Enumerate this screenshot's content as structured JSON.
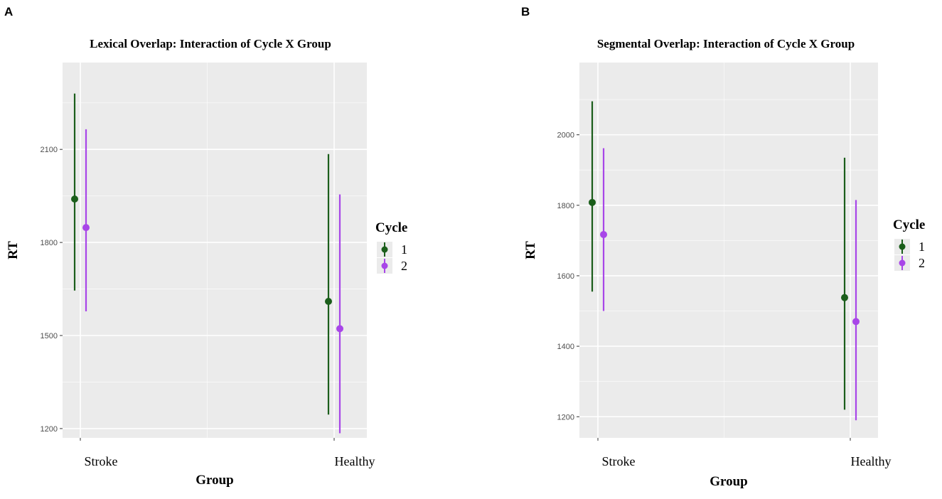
{
  "colors": {
    "cycle1": "#1b5e1b",
    "cycle2": "#a846e8",
    "panel_bg": "#ebebeb",
    "grid": "#ffffff"
  },
  "chart_data": [
    {
      "panel_label": "A",
      "type": "errorbar",
      "title": "Lexical Overlap: Interaction of Cycle X Group",
      "xlabel": "Group",
      "ylabel": "RT",
      "categories": [
        "Stroke",
        "Healthy"
      ],
      "ylim": [
        1170,
        2380
      ],
      "yticks": [
        1200,
        1500,
        1800,
        2100
      ],
      "legend": {
        "title": "Cycle",
        "position": "right",
        "entries": [
          "1",
          "2"
        ]
      },
      "series": [
        {
          "name": "1",
          "color_key": "cycle1",
          "means": [
            1940,
            1610
          ],
          "lower": [
            1645,
            1245
          ],
          "upper": [
            2280,
            2085
          ]
        },
        {
          "name": "2",
          "color_key": "cycle2",
          "means": [
            1848,
            1522
          ],
          "lower": [
            1578,
            1185
          ],
          "upper": [
            2165,
            1955
          ]
        }
      ]
    },
    {
      "panel_label": "B",
      "type": "errorbar",
      "title": "Segmental Overlap: Interaction of Cycle X Group",
      "xlabel": "Group",
      "ylabel": "RT",
      "categories": [
        "Stroke",
        "Healthy"
      ],
      "ylim": [
        1140,
        2205
      ],
      "yticks": [
        1200,
        1400,
        1600,
        1800,
        2000
      ],
      "legend": {
        "title": "Cycle",
        "position": "right",
        "entries": [
          "1",
          "2"
        ]
      },
      "series": [
        {
          "name": "1",
          "color_key": "cycle1",
          "means": [
            1808,
            1538
          ],
          "lower": [
            1555,
            1220
          ],
          "upper": [
            2095,
            1935
          ]
        },
        {
          "name": "2",
          "color_key": "cycle2",
          "means": [
            1717,
            1470
          ],
          "lower": [
            1500,
            1190
          ],
          "upper": [
            1962,
            1815
          ]
        }
      ]
    }
  ]
}
